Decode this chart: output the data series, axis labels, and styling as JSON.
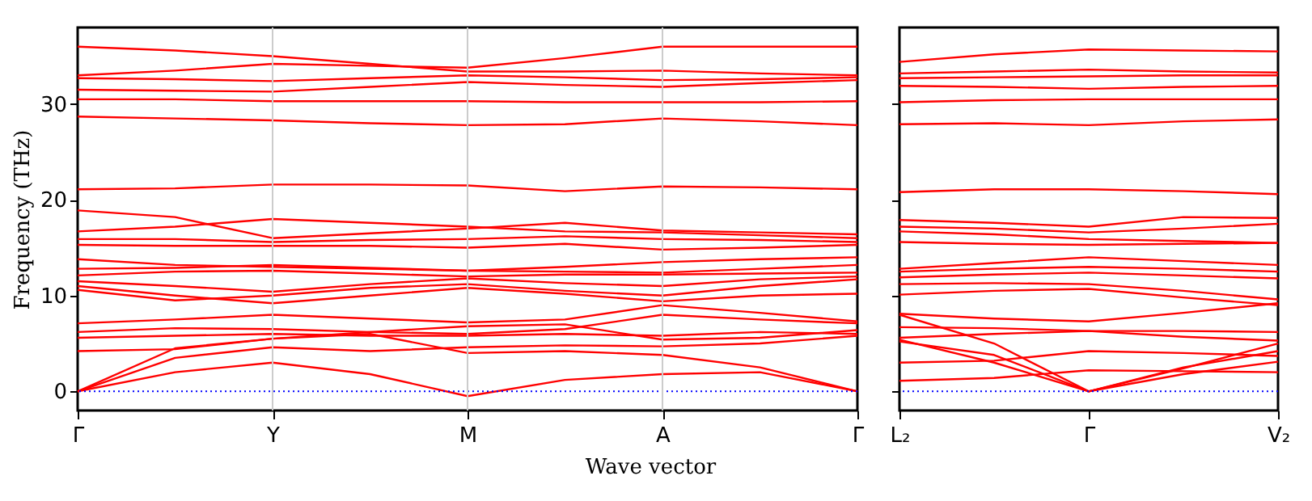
{
  "chart_data": [
    {
      "type": "line",
      "xlabel": "Wave vector",
      "ylabel": "Frequency (THz)",
      "categories": [
        "Γ",
        null,
        "Y",
        null,
        "M",
        null,
        "A",
        null,
        "Γ"
      ],
      "ylim": [
        -2,
        38
      ],
      "yticks": [
        0,
        10,
        20,
        30
      ],
      "line_style": "solid",
      "ref_lines": [
        {
          "axis": "y",
          "value": 0,
          "color": "#0000ff",
          "line_style": "dotted"
        },
        {
          "axis": "x",
          "value": "Y",
          "color": "#cccccc"
        },
        {
          "axis": "x",
          "value": "M",
          "color": "#cccccc"
        },
        {
          "axis": "x",
          "value": "A",
          "color": "#cccccc"
        }
      ],
      "series": [
        {
          "color": "#ff0000",
          "values": [
            36.0,
            35.6,
            35.0,
            34.2,
            33.4,
            33.4,
            33.5,
            33.2,
            33.0
          ]
        },
        {
          "color": "#ff0000",
          "values": [
            33.0,
            33.5,
            34.2,
            34.0,
            33.8,
            34.8,
            36.0,
            36.0,
            36.0
          ]
        },
        {
          "color": "#ff0000",
          "values": [
            32.7,
            32.6,
            32.4,
            32.7,
            33.0,
            32.8,
            32.5,
            32.6,
            32.8
          ]
        },
        {
          "color": "#ff0000",
          "values": [
            31.5,
            31.4,
            31.3,
            31.8,
            32.3,
            32.0,
            31.8,
            32.2,
            32.5
          ]
        },
        {
          "color": "#ff0000",
          "values": [
            30.5,
            30.5,
            30.3,
            30.3,
            30.3,
            30.2,
            30.2,
            30.2,
            30.3
          ]
        },
        {
          "color": "#ff0000",
          "values": [
            28.7,
            28.5,
            28.3,
            28.0,
            27.8,
            27.9,
            28.5,
            28.2,
            27.8
          ]
        },
        {
          "color": "#ff0000",
          "values": [
            21.1,
            21.2,
            21.6,
            21.6,
            21.5,
            20.9,
            21.4,
            21.3,
            21.1
          ]
        },
        {
          "color": "#ff0000",
          "values": [
            18.9,
            18.2,
            16.0,
            16.5,
            17.0,
            17.6,
            16.8,
            16.6,
            16.4
          ]
        },
        {
          "color": "#ff0000",
          "values": [
            16.7,
            17.2,
            18.0,
            17.6,
            17.2,
            16.7,
            16.6,
            16.3,
            16.0
          ]
        },
        {
          "color": "#ff0000",
          "values": [
            15.9,
            15.9,
            15.6,
            15.8,
            15.9,
            16.2,
            15.9,
            15.8,
            15.6
          ]
        },
        {
          "color": "#ff0000",
          "values": [
            15.3,
            15.2,
            15.2,
            15.2,
            15.0,
            15.4,
            14.8,
            15.0,
            15.3
          ]
        },
        {
          "color": "#ff0000",
          "values": [
            13.8,
            13.2,
            13.0,
            12.8,
            12.6,
            13.0,
            13.5,
            13.8,
            14.0
          ]
        },
        {
          "color": "#ff0000",
          "values": [
            12.8,
            12.9,
            13.2,
            12.9,
            12.6,
            12.5,
            12.4,
            12.8,
            13.2
          ]
        },
        {
          "color": "#ff0000",
          "values": [
            12.1,
            12.5,
            12.6,
            12.3,
            12.0,
            12.2,
            12.2,
            12.3,
            12.4
          ]
        },
        {
          "color": "#ff0000",
          "values": [
            11.5,
            11.0,
            10.4,
            11.2,
            11.8,
            11.3,
            11.0,
            11.7,
            12.0
          ]
        },
        {
          "color": "#ff0000",
          "values": [
            10.6,
            9.5,
            10.0,
            10.8,
            11.2,
            10.5,
            10.0,
            11.0,
            11.7
          ]
        },
        {
          "color": "#ff0000",
          "values": [
            11.0,
            10.0,
            9.2,
            10.0,
            10.8,
            10.2,
            9.4,
            10.0,
            10.2
          ]
        },
        {
          "color": "#ff0000",
          "values": [
            7.1,
            7.5,
            8.0,
            7.6,
            7.2,
            7.5,
            9.0,
            8.2,
            7.3
          ]
        },
        {
          "color": "#ff0000",
          "values": [
            6.2,
            6.6,
            6.5,
            6.2,
            6.0,
            6.5,
            8.0,
            7.5,
            7.1
          ]
        },
        {
          "color": "#ff0000",
          "values": [
            5.6,
            5.8,
            6.0,
            5.8,
            5.8,
            6.0,
            5.8,
            6.2,
            6.0
          ]
        },
        {
          "color": "#ff0000",
          "values": [
            4.2,
            4.4,
            5.5,
            6.0,
            4.0,
            4.2,
            3.8,
            2.5,
            0
          ]
        },
        {
          "color": "#ff0000",
          "values": [
            0,
            4.5,
            5.5,
            6.2,
            6.8,
            7.0,
            5.4,
            5.6,
            6.4
          ]
        },
        {
          "color": "#ff0000",
          "values": [
            0,
            3.5,
            4.6,
            4.2,
            4.6,
            4.8,
            4.7,
            5.0,
            5.8
          ]
        },
        {
          "color": "#ff0000",
          "values": [
            0,
            2.0,
            3.0,
            1.8,
            -0.5,
            1.2,
            1.8,
            2.0,
            0
          ]
        }
      ]
    },
    {
      "type": "line",
      "categories": [
        "L₂",
        null,
        "Γ",
        null,
        "V₂"
      ],
      "ylim": [
        -2,
        38
      ],
      "yticks": [
        0,
        10,
        20,
        30
      ],
      "tick_labels": "x",
      "line_style": "solid",
      "ref_lines": [
        {
          "axis": "y",
          "value": 0,
          "color": "#0000ff",
          "line_style": "dotted"
        }
      ],
      "series": [
        {
          "color": "#ff0000",
          "values": [
            34.4,
            35.2,
            35.7,
            35.6,
            35.5
          ]
        },
        {
          "color": "#ff0000",
          "values": [
            33.2,
            33.4,
            33.6,
            33.4,
            33.3
          ]
        },
        {
          "color": "#ff0000",
          "values": [
            32.7,
            32.8,
            32.9,
            33.0,
            33.0
          ]
        },
        {
          "color": "#ff0000",
          "values": [
            31.9,
            31.8,
            31.6,
            31.8,
            31.9
          ]
        },
        {
          "color": "#ff0000",
          "values": [
            30.2,
            30.4,
            30.5,
            30.5,
            30.5
          ]
        },
        {
          "color": "#ff0000",
          "values": [
            27.9,
            28.0,
            27.8,
            28.2,
            28.4
          ]
        },
        {
          "color": "#ff0000",
          "values": [
            20.8,
            21.1,
            21.1,
            20.9,
            20.6
          ]
        },
        {
          "color": "#ff0000",
          "values": [
            17.9,
            17.6,
            17.2,
            18.2,
            18.1
          ]
        },
        {
          "color": "#ff0000",
          "values": [
            17.2,
            17.0,
            16.6,
            17.0,
            17.5
          ]
        },
        {
          "color": "#ff0000",
          "values": [
            16.7,
            16.4,
            15.9,
            15.7,
            15.5
          ]
        },
        {
          "color": "#ff0000",
          "values": [
            15.6,
            15.4,
            15.3,
            15.4,
            15.5
          ]
        },
        {
          "color": "#ff0000",
          "values": [
            12.8,
            13.4,
            14.0,
            13.6,
            13.2
          ]
        },
        {
          "color": "#ff0000",
          "values": [
            12.5,
            12.8,
            13.0,
            12.8,
            12.5
          ]
        },
        {
          "color": "#ff0000",
          "values": [
            11.9,
            12.2,
            12.4,
            12.1,
            11.8
          ]
        },
        {
          "color": "#ff0000",
          "values": [
            11.2,
            11.3,
            11.2,
            10.5,
            9.6
          ]
        },
        {
          "color": "#ff0000",
          "values": [
            10.1,
            10.5,
            10.7,
            9.8,
            9.0
          ]
        },
        {
          "color": "#ff0000",
          "values": [
            8.1,
            7.6,
            7.3,
            8.2,
            9.2
          ]
        },
        {
          "color": "#ff0000",
          "values": [
            6.7,
            6.6,
            6.3,
            6.3,
            6.2
          ]
        },
        {
          "color": "#ff0000",
          "values": [
            5.6,
            6.0,
            6.3,
            5.7,
            5.3
          ]
        },
        {
          "color": "#ff0000",
          "values": [
            5.2,
            3.8,
            0,
            2.4,
            5.0
          ]
        },
        {
          "color": "#ff0000",
          "values": [
            8.0,
            5.0,
            0,
            2.5,
            4.2
          ]
        },
        {
          "color": "#ff0000",
          "values": [
            3.0,
            3.2,
            4.2,
            4.0,
            3.7
          ]
        },
        {
          "color": "#ff0000",
          "values": [
            1.1,
            1.4,
            2.2,
            2.1,
            2.0
          ]
        },
        {
          "color": "#ff0000",
          "values": [
            5.4,
            3.0,
            0,
            1.8,
            3.1
          ]
        }
      ]
    }
  ]
}
